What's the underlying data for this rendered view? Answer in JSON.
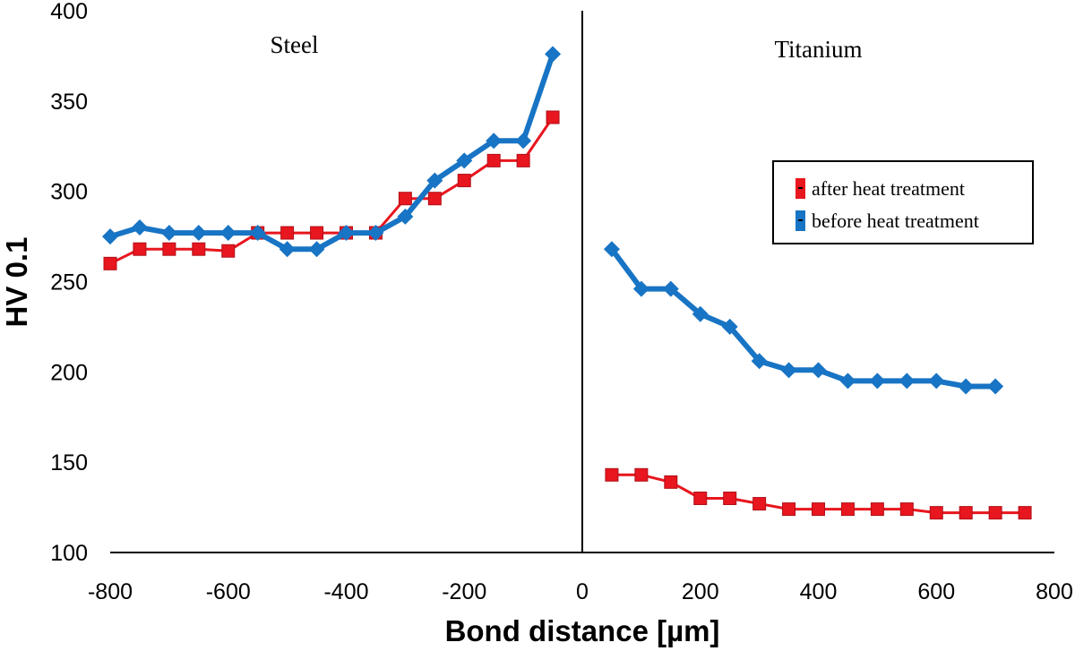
{
  "chart_data": {
    "type": "line",
    "xlabel": "Bond distance [µm]",
    "ylabel": "HV 0.1",
    "xlim": [
      -800,
      800
    ],
    "ylim": [
      100,
      400
    ],
    "xticks": [
      "-800",
      "-600",
      "-400",
      "-200",
      "0",
      "200",
      "400",
      "600",
      "800"
    ],
    "yticks": [
      "100",
      "150",
      "200",
      "250",
      "300",
      "350",
      "400"
    ],
    "regions": [
      {
        "label": "Steel",
        "x": -400
      },
      {
        "label": "Titanium",
        "x": 400
      }
    ],
    "divider_x": 0,
    "legend": [
      "after heat treatment",
      "before heat treatment"
    ],
    "series": [
      {
        "name": "after heat treatment",
        "color": "#e8161e",
        "marker": "square",
        "points": [
          [
            -800,
            260
          ],
          [
            -750,
            268
          ],
          [
            -700,
            268
          ],
          [
            -650,
            268
          ],
          [
            -600,
            267
          ],
          [
            -550,
            277
          ],
          [
            -500,
            277
          ],
          [
            -450,
            277
          ],
          [
            -400,
            277
          ],
          [
            -350,
            277
          ],
          [
            -300,
            296
          ],
          [
            -250,
            296
          ],
          [
            -200,
            306
          ],
          [
            -150,
            317
          ],
          [
            -100,
            317
          ],
          [
            -50,
            341
          ],
          [
            50,
            143
          ],
          [
            100,
            143
          ],
          [
            150,
            139
          ],
          [
            200,
            130
          ],
          [
            250,
            130
          ],
          [
            300,
            127
          ],
          [
            350,
            124
          ],
          [
            400,
            124
          ],
          [
            450,
            124
          ],
          [
            500,
            124
          ],
          [
            550,
            124
          ],
          [
            600,
            122
          ],
          [
            650,
            122
          ],
          [
            700,
            122
          ],
          [
            750,
            122
          ]
        ]
      },
      {
        "name": "before heat treatment",
        "color": "#1874c4",
        "marker": "diamond",
        "points": [
          [
            -800,
            275
          ],
          [
            -750,
            280
          ],
          [
            -700,
            277
          ],
          [
            -650,
            277
          ],
          [
            -600,
            277
          ],
          [
            -550,
            277
          ],
          [
            -500,
            268
          ],
          [
            -450,
            268
          ],
          [
            -400,
            277
          ],
          [
            -350,
            277
          ],
          [
            -300,
            286
          ],
          [
            -250,
            306
          ],
          [
            -200,
            317
          ],
          [
            -150,
            328
          ],
          [
            -100,
            328
          ],
          [
            -50,
            376
          ],
          [
            50,
            268
          ],
          [
            100,
            246
          ],
          [
            150,
            246
          ],
          [
            200,
            232
          ],
          [
            250,
            225
          ],
          [
            300,
            206
          ],
          [
            350,
            201
          ],
          [
            400,
            201
          ],
          [
            450,
            195
          ],
          [
            500,
            195
          ],
          [
            550,
            195
          ],
          [
            600,
            195
          ],
          [
            650,
            192
          ],
          [
            700,
            192
          ]
        ]
      }
    ]
  }
}
